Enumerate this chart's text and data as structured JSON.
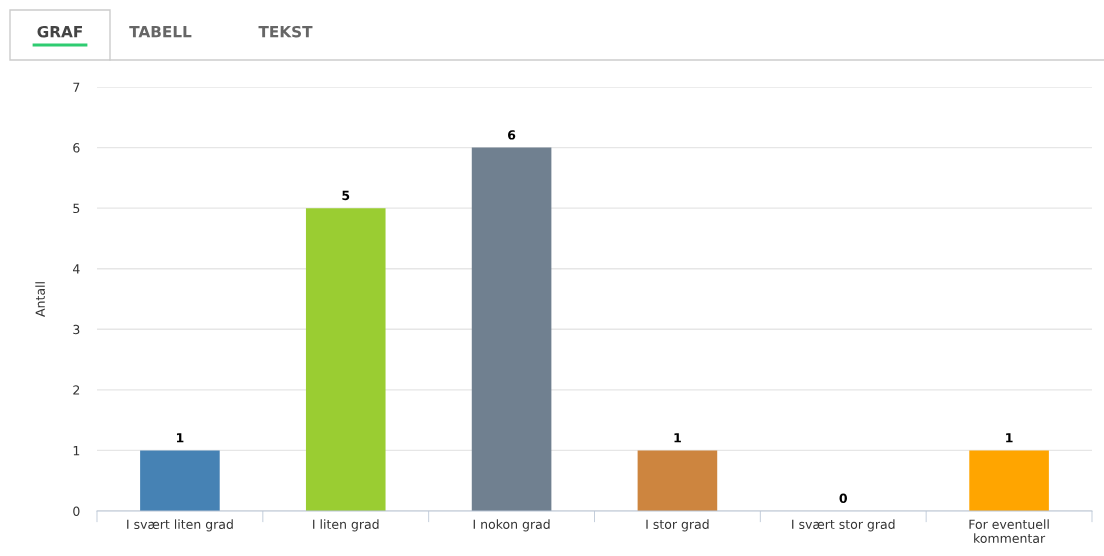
{
  "chart_data": {
    "type": "bar",
    "ylabel": "Antall",
    "categories": [
      "I svært liten grad",
      "I liten grad",
      "I nokon grad",
      "I stor grad",
      "I svært stor grad",
      "For eventuell kommentar"
    ],
    "values": [
      1,
      5,
      6,
      1,
      0,
      1
    ],
    "colors": [
      "#4682b4",
      "#9acd32",
      "#708090",
      "#cd853f",
      "#b0b0b0",
      "#ffa500"
    ],
    "ylim": [
      0,
      7
    ],
    "yticks": [
      0,
      1,
      2,
      3,
      4,
      5,
      6,
      7
    ],
    "grid": "y",
    "data_labels": true,
    "legend": false,
    "annotations": [
      "GRAF",
      "TABELL",
      "TEKST"
    ]
  }
}
